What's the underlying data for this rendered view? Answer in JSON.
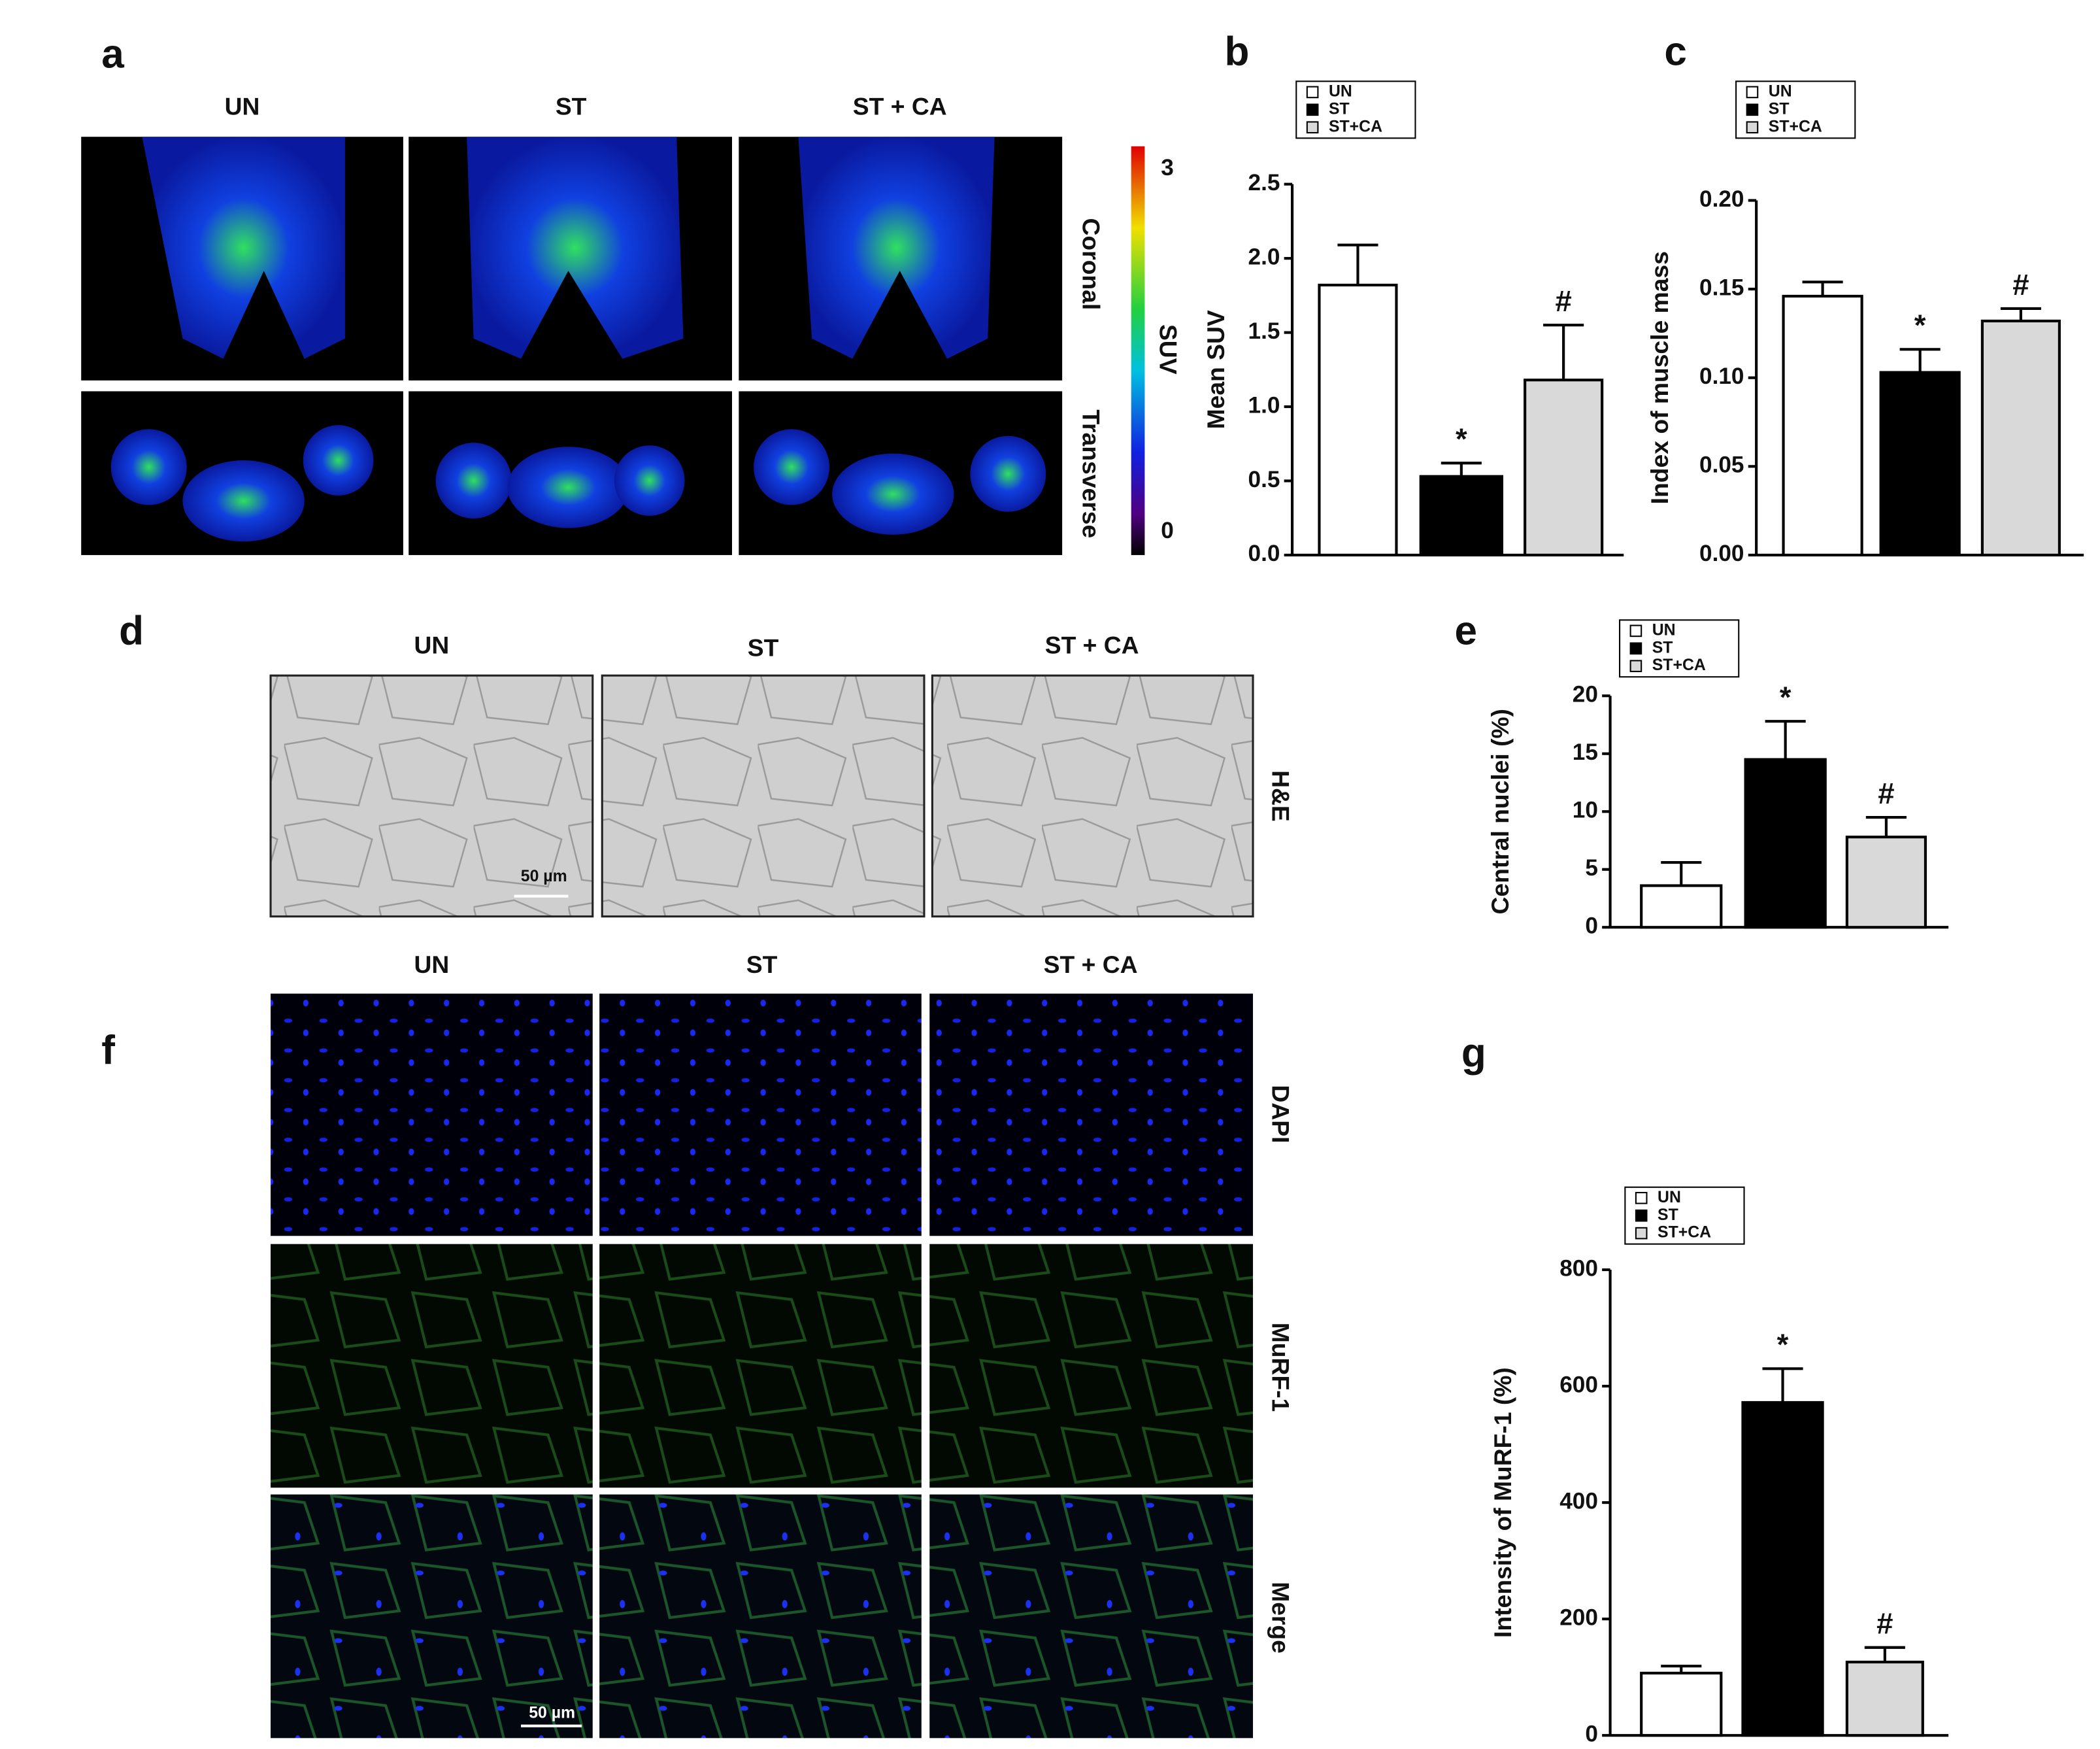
{
  "figure": {
    "panel_letters": [
      "a",
      "b",
      "c",
      "d",
      "e",
      "f",
      "g"
    ],
    "panel_a": {
      "columns": [
        "UN",
        "ST",
        "ST + CA"
      ],
      "rows": [
        "Coronal",
        "Transverse"
      ],
      "colorbar": {
        "label": "SUV",
        "ticks": [
          0,
          3
        ]
      }
    },
    "panel_d": {
      "columns": [
        "UN",
        "ST",
        "ST + CA"
      ],
      "row": "H&E",
      "scale_bar": "50 µm"
    },
    "panel_f": {
      "columns": [
        "UN",
        "ST",
        "ST + CA"
      ],
      "rows": [
        "DAPI",
        "MuRF-1",
        "Merge"
      ],
      "scale_bar": "50 µm"
    }
  },
  "chart_data": [
    {
      "type": "bar",
      "y_label": "Mean SUV",
      "ylim": [
        0,
        2.5
      ],
      "yticks": [
        {
          "value": 0,
          "label": "0.0"
        },
        0.5,
        {
          "value": 1,
          "label": "1.0"
        },
        1.5,
        {
          "value": 2,
          "label": "2.0"
        },
        2.5
      ],
      "series": [
        {
          "name": "UN",
          "color": "#ffffff",
          "values": [
            1.82
          ],
          "errors": [
            0.27
          ]
        },
        {
          "name": "ST",
          "color": "#000000",
          "values": [
            0.53
          ],
          "errors": [
            0.09
          ],
          "annotation": "*"
        },
        {
          "name": "ST+CA",
          "color": "#d9d9d9",
          "values": [
            1.18
          ],
          "errors": [
            0.37
          ],
          "annotation": "#"
        }
      ]
    },
    {
      "type": "bar",
      "y_label": "Index of  muscle mass",
      "ylim": [
        0,
        0.2
      ],
      "yticks": [
        {
          "value": 0,
          "label": "0.00"
        },
        0.05,
        {
          "value": 0.1,
          "label": "0.10"
        },
        0.15,
        {
          "value": 0.2,
          "label": "0.20"
        }
      ],
      "series": [
        {
          "name": "UN",
          "color": "#ffffff",
          "values": [
            0.146
          ],
          "errors": [
            0.008
          ]
        },
        {
          "name": "ST",
          "color": "#000000",
          "values": [
            0.103
          ],
          "errors": [
            0.013
          ],
          "annotation": "*"
        },
        {
          "name": "ST+CA",
          "color": "#d9d9d9",
          "values": [
            0.132
          ],
          "errors": [
            0.007
          ],
          "annotation": "#"
        }
      ]
    },
    {
      "type": "bar",
      "y_label": "Central nuclei (%)",
      "ylim": [
        0,
        20
      ],
      "yticks": [
        0,
        5,
        10,
        15,
        20
      ],
      "series": [
        {
          "name": "UN",
          "color": "#ffffff",
          "values": [
            3.6
          ],
          "errors": [
            2.0
          ]
        },
        {
          "name": "ST",
          "color": "#000000",
          "values": [
            14.5
          ],
          "errors": [
            3.3
          ],
          "annotation": "*"
        },
        {
          "name": "ST+CA",
          "color": "#d9d9d9",
          "values": [
            7.8
          ],
          "errors": [
            1.7
          ],
          "annotation": "#"
        }
      ]
    },
    {
      "type": "bar",
      "y_label": "Intensity of MuRF-1 (%)",
      "ylim": [
        0,
        800
      ],
      "yticks": [
        0,
        200,
        400,
        600,
        800
      ],
      "series": [
        {
          "name": "UN",
          "color": "#ffffff",
          "values": [
            107
          ],
          "errors": [
            12
          ]
        },
        {
          "name": "ST",
          "color": "#000000",
          "values": [
            572
          ],
          "errors": [
            58
          ],
          "annotation": "*"
        },
        {
          "name": "ST+CA",
          "color": "#d9d9d9",
          "values": [
            126
          ],
          "errors": [
            25
          ],
          "annotation": "#"
        }
      ]
    }
  ]
}
